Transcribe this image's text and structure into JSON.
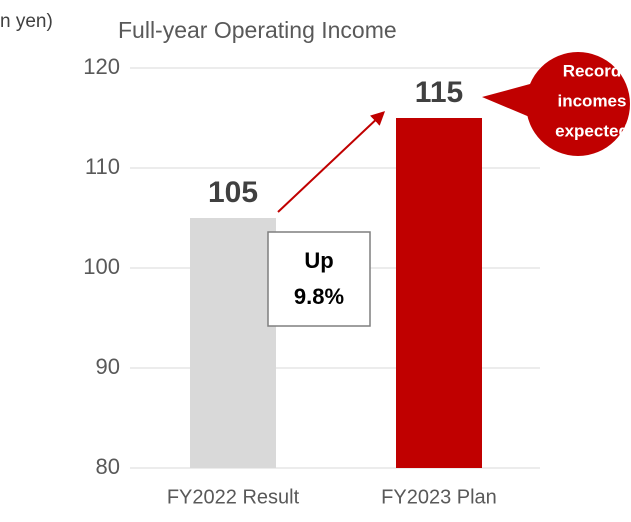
{
  "chart_data": {
    "type": "bar",
    "title": "Full-year Operating Income",
    "y_axis_label": "n yen)",
    "categories": [
      "FY2022 Result",
      "FY2023 Plan"
    ],
    "values": [
      105,
      115
    ],
    "colors": [
      "#d9d9d9",
      "#c00000"
    ],
    "ylim": [
      80,
      120
    ],
    "yticks": [
      80,
      90,
      100,
      110,
      120
    ],
    "grid": true,
    "annotations": [
      {
        "text": [
          "Up",
          "9.8%"
        ]
      },
      {
        "text": [
          "Record",
          "incomes",
          "expected"
        ]
      }
    ]
  }
}
